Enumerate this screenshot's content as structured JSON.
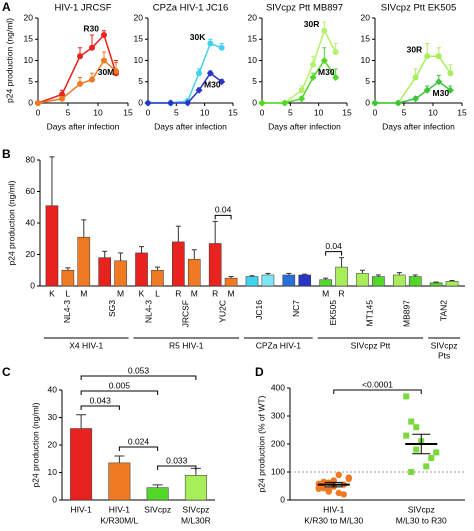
{
  "chart_data": [
    {
      "type": "line",
      "panel": "A",
      "title": "HIV-1 JRCSF",
      "y_label": "p24 production (ng/ml)",
      "x_label": "Days after infection",
      "x": [
        0,
        4,
        7,
        9,
        11,
        13
      ],
      "xlim": [
        0,
        15
      ],
      "xticks": [
        0,
        5,
        10,
        15
      ],
      "ylim": [
        0,
        20
      ],
      "yticks": [
        0,
        5,
        10,
        15,
        20
      ],
      "series": [
        {
          "name": "R30",
          "color": "#e8231f",
          "marker": "circle",
          "values": [
            0,
            2,
            11,
            13,
            16,
            7
          ],
          "errors": [
            0,
            1,
            2,
            3,
            1,
            3
          ]
        },
        {
          "name": "30M",
          "color": "#f07a24",
          "marker": "circle",
          "values": [
            0,
            1,
            4.5,
            5.5,
            10,
            7.5
          ],
          "errors": [
            0,
            0.5,
            1.5,
            1.5,
            2,
            2
          ]
        }
      ]
    },
    {
      "type": "line",
      "title": "CPZa HIV-1 JC16",
      "x_label": "Days after infection",
      "x": [
        0,
        4,
        7,
        9,
        11,
        13
      ],
      "xlim": [
        0,
        15
      ],
      "xticks": [
        0,
        5,
        10,
        15
      ],
      "ylim": [
        0,
        20
      ],
      "yticks": [
        0,
        5,
        10,
        15,
        20
      ],
      "series": [
        {
          "name": "30K",
          "color": "#3fd3f0",
          "marker": "circle",
          "values": [
            0,
            0,
            0.5,
            7,
            14,
            13
          ],
          "errors": [
            0,
            0,
            0.3,
            1,
            1,
            1
          ]
        },
        {
          "name": "M30",
          "color": "#2a35c8",
          "marker": "diamond",
          "values": [
            0,
            0,
            0,
            3,
            7,
            5
          ],
          "errors": [
            0,
            0,
            0,
            0.5,
            0.5,
            0.5
          ]
        }
      ]
    },
    {
      "type": "line",
      "title": "SIVcpz Ptt MB897",
      "x_label": "Days after infection",
      "x": [
        0,
        4,
        7,
        9,
        11,
        13
      ],
      "xlim": [
        0,
        15
      ],
      "xticks": [
        0,
        5,
        10,
        15
      ],
      "ylim": [
        0,
        20
      ],
      "yticks": [
        0,
        5,
        10,
        15,
        20
      ],
      "series": [
        {
          "name": "30R",
          "color": "#b7f06a",
          "marker": "circle",
          "values": [
            0,
            0,
            3,
            9,
            17,
            12
          ],
          "errors": [
            0,
            0,
            1,
            2,
            2,
            2
          ]
        },
        {
          "name": "M30",
          "color": "#52d62a",
          "marker": "diamond",
          "values": [
            0,
            0,
            1,
            6,
            10,
            6
          ],
          "errors": [
            0,
            0,
            0.5,
            1,
            3,
            2
          ]
        }
      ]
    },
    {
      "type": "line",
      "title": "SIVcpz Ptt EK505",
      "x_label": "Days after infection",
      "x": [
        0,
        4,
        7,
        9,
        11,
        13
      ],
      "xlim": [
        0,
        15
      ],
      "xticks": [
        0,
        5,
        10,
        15
      ],
      "ylim": [
        0,
        20
      ],
      "yticks": [
        0,
        5,
        10,
        15,
        20
      ],
      "series": [
        {
          "name": "30R",
          "color": "#a8ee5a",
          "marker": "circle",
          "values": [
            0,
            0,
            6,
            11,
            11,
            7
          ],
          "errors": [
            0,
            0,
            2,
            3,
            2,
            2
          ]
        },
        {
          "name": "M30",
          "color": "#3cc43a",
          "marker": "diamond",
          "values": [
            0,
            0,
            1,
            3,
            5,
            3
          ],
          "errors": [
            0,
            0,
            0.5,
            1,
            1.5,
            1
          ]
        }
      ]
    },
    {
      "type": "bar",
      "panel": "B",
      "y_label": "p24 production (ng/ml)",
      "ylim": [
        0,
        80
      ],
      "yticks": [
        0,
        20,
        40,
        60,
        80
      ],
      "groups": [
        {
          "name": [
            "X4 HIV-1"
          ],
          "strains": [
            {
              "name": "NL4-3",
              "categories": [
                "K",
                "L",
                "M"
              ],
              "values": [
                51,
                10,
                31
              ],
              "errors": [
                31,
                1.5,
                11
              ],
              "colors": [
                "#e8231f",
                "#f07a24",
                "#f07a24"
              ]
            },
            {
              "name": "SG3",
              "categories": [
                null,
                "M"
              ],
              "values": [
                18,
                16
              ],
              "errors": [
                4,
                5
              ],
              "colors": [
                "#e8231f",
                "#f07a24"
              ]
            }
          ]
        },
        {
          "name": [
            "R5 HIV-1"
          ],
          "strains": [
            {
              "name": "NL4-3",
              "categories": [
                "K",
                "L"
              ],
              "values": [
                21,
                10
              ],
              "errors": [
                4,
                2
              ],
              "colors": [
                "#e8231f",
                "#f07a24"
              ]
            },
            {
              "name": "JRCSF",
              "categories": [
                "R",
                "M"
              ],
              "values": [
                28,
                17
              ],
              "errors": [
                10,
                6
              ],
              "colors": [
                "#e8231f",
                "#f07a24"
              ]
            },
            {
              "name": "YU2C",
              "categories": [
                "R",
                "M"
              ],
              "values": [
                27,
                5
              ],
              "errors": [
                14,
                1
              ],
              "colors": [
                "#e8231f",
                "#f07a24"
              ],
              "comparison": "0.04"
            }
          ]
        },
        {
          "name": [
            "CPZa HIV-1"
          ],
          "strains": [
            {
              "name": "JC16",
              "categories": [
                null,
                null
              ],
              "values": [
                6,
                7
              ],
              "errors": [
                0.5,
                1
              ],
              "colors": [
                "#3fd3f0",
                "#7fe4f5"
              ]
            },
            {
              "name": "NC7",
              "categories": [
                null,
                null
              ],
              "values": [
                7,
                7
              ],
              "errors": [
                1,
                0.5
              ],
              "colors": [
                "#2a6fd6",
                "#2a35c8"
              ]
            }
          ]
        },
        {
          "name": [
            "SIVcpz Ptt"
          ],
          "strains": [
            {
              "name": "EK505",
              "categories": [
                "M",
                "R"
              ],
              "values": [
                4,
                12
              ],
              "errors": [
                1,
                6
              ],
              "colors": [
                "#52d62a",
                "#a8ee5a"
              ],
              "comparison": "0.04"
            },
            {
              "name": "MT145",
              "categories": [
                null,
                null
              ],
              "values": [
                8,
                6
              ],
              "errors": [
                2,
                1
              ],
              "colors": [
                "#a8ee5a",
                "#52d62a"
              ]
            },
            {
              "name": "MB897",
              "categories": [
                null,
                null
              ],
              "values": [
                7,
                6
              ],
              "errors": [
                1.5,
                1
              ],
              "colors": [
                "#a8ee5a",
                "#52d62a"
              ]
            }
          ]
        },
        {
          "name": [
            "SIVcpz",
            "Pts"
          ],
          "strains": [
            {
              "name": "TAN2",
              "categories": [
                null,
                null
              ],
              "values": [
                2,
                3
              ],
              "errors": [
                0.5,
                0.5
              ],
              "colors": [
                "#52d62a",
                "#a8ee5a"
              ]
            }
          ]
        }
      ]
    },
    {
      "type": "bar",
      "panel": "C",
      "y_label": "p24 production (ng/ml)",
      "ylim": [
        0,
        40
      ],
      "yticks": [
        0,
        10,
        20,
        30,
        40
      ],
      "categories": [
        [
          "HIV-1"
        ],
        [
          "HIV-1",
          "K/R30M/L"
        ],
        [
          "SIVcpz"
        ],
        [
          "SIVcpz",
          "M/L30R"
        ]
      ],
      "values": [
        26,
        13.5,
        4.5,
        9
      ],
      "errors": [
        5,
        2.5,
        1,
        2.5
      ],
      "colors": [
        "#e8231f",
        "#f07a24",
        "#52d62a",
        "#a8ee5a"
      ],
      "comparisons": [
        "0.053",
        "0.005",
        "0.043",
        "0.024",
        "0.033"
      ]
    },
    {
      "type": "dot",
      "panel": "D",
      "y_label": "p24 production (% of WT)",
      "ylim": [
        0,
        400
      ],
      "yticks": [
        0,
        100,
        200,
        300,
        400
      ],
      "reference_line": 100,
      "groups": [
        {
          "category": [
            "HIV-1",
            "K/R30 to M/L30"
          ],
          "color": "#f07a24",
          "marker": "circle",
          "values": [
            45,
            60,
            30,
            70,
            25,
            55,
            80,
            40,
            65,
            35,
            50,
            90,
            20,
            75,
            58,
            42,
            62,
            48
          ],
          "mean": 55,
          "error": 8
        },
        {
          "category": [
            "SIVcpz",
            "M/L30 to R30"
          ],
          "color": "#7ad83a",
          "marker": "square",
          "values": [
            370,
            280,
            180,
            210,
            120,
            150,
            170,
            230,
            100,
            260
          ],
          "mean": 200,
          "error": 35
        }
      ],
      "comparison": "<0.0001"
    }
  ]
}
